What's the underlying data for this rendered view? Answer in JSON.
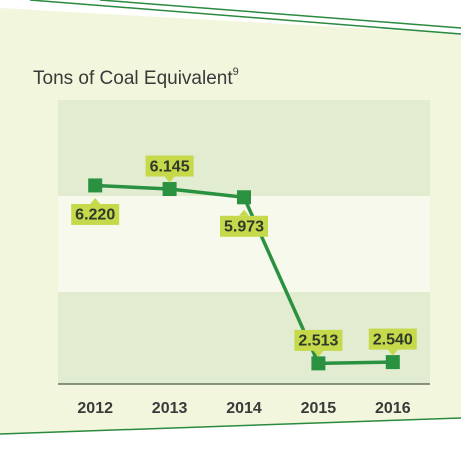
{
  "chart_data": {
    "type": "line",
    "title": "Tons of Coal Equivalent",
    "title_note": "9",
    "categories": [
      "2012",
      "2013",
      "2014",
      "2015",
      "2016"
    ],
    "values": [
      6.22,
      6.145,
      5.973,
      2.513,
      2.54
    ],
    "value_labels": [
      "6.220",
      "6.145",
      "5.973",
      "2.513",
      "2.540"
    ],
    "color": "#2a9140",
    "ylim": [
      2,
      8
    ],
    "yticks": [
      2,
      4,
      6,
      8
    ],
    "grid": true
  }
}
